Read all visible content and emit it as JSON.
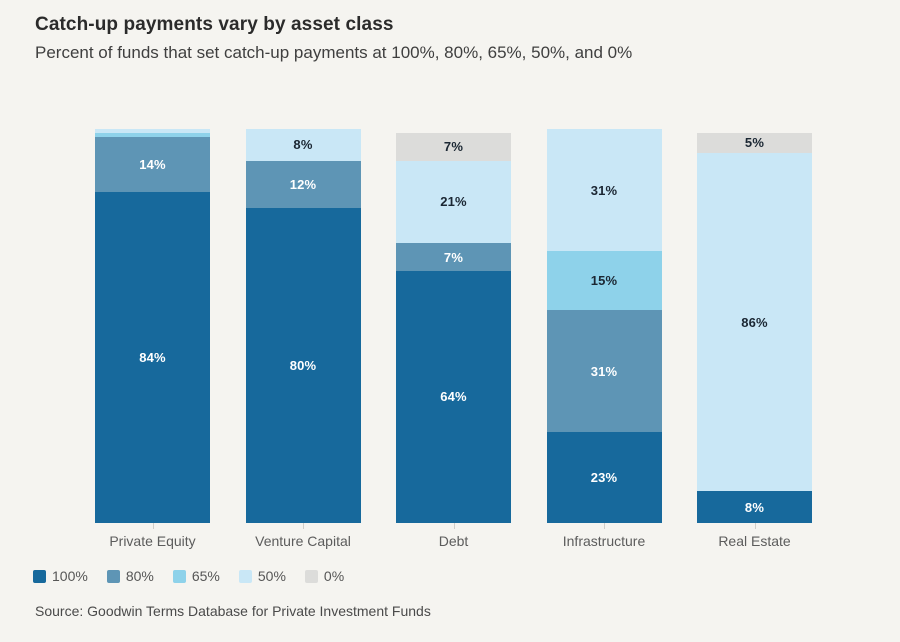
{
  "header": {
    "title": "Catch-up payments vary by asset class",
    "subtitle": "Percent of funds that set catch-up payments at 100%, 80%, 65%, 50%, and 0%"
  },
  "source": "Source: Goodwin Terms Database for Private Investment Funds",
  "colors": {
    "background": "#f5f4f0",
    "title_text": "#2b2b2b",
    "subtitle_text": "#3f3f3f",
    "axis_label_text": "#5c5c5c",
    "legend_text": "#565656",
    "source_text": "#4a4a4a"
  },
  "chart_data": {
    "type": "bar",
    "stacked": true,
    "orientation": "vertical",
    "title": "Catch-up payments vary by asset class",
    "subtitle": "Percent of funds that set catch-up payments at 100%, 80%, 65%, 50%, and 0%",
    "categories": [
      "Private Equity",
      "Venture Capital",
      "Debt",
      "Infrastructure",
      "Real Estate"
    ],
    "series": [
      {
        "name": "100%",
        "color": "#17699c",
        "label_color": "#ffffff",
        "values": [
          84,
          80,
          64,
          23,
          8
        ]
      },
      {
        "name": "80%",
        "color": "#5e95b5",
        "label_color": "#ffffff",
        "values": [
          14,
          12,
          7,
          31,
          0
        ]
      },
      {
        "name": "65%",
        "color": "#8ed2ea",
        "label_color": "#1b2733",
        "values": [
          1,
          0,
          0,
          15,
          0
        ]
      },
      {
        "name": "50%",
        "color": "#c9e7f6",
        "label_color": "#1b2733",
        "values": [
          1,
          8,
          21,
          31,
          86
        ]
      },
      {
        "name": "0%",
        "color": "#dcdcda",
        "label_color": "#1b2733",
        "values": [
          0,
          0,
          7,
          0,
          5
        ]
      }
    ],
    "value_suffix": "%",
    "label_min_to_show": 2,
    "ylim": [
      0,
      100
    ],
    "grid": false,
    "legend_position": "bottom-left",
    "xlabel": "",
    "ylabel": ""
  }
}
